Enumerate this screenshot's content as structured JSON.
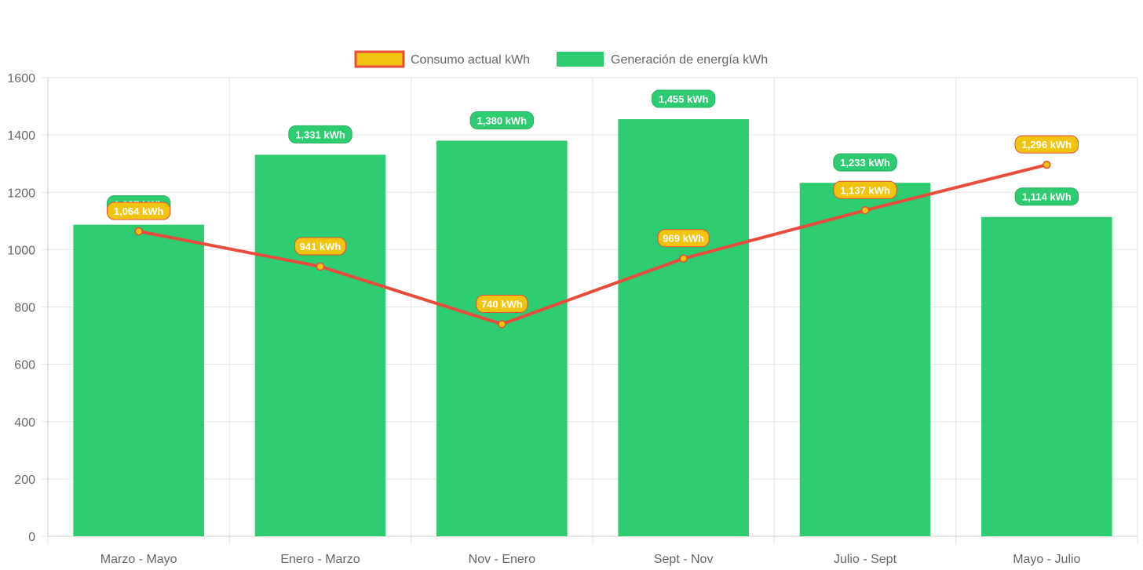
{
  "chart_data": {
    "type": "bar",
    "categories": [
      "Marzo - Mayo",
      "Enero - Marzo",
      "Nov - Enero",
      "Sept - Nov",
      "Julio - Sept",
      "Mayo - Julio"
    ],
    "series": [
      {
        "name": "Consumo actual kWh",
        "type": "line",
        "values": [
          1064,
          941,
          740,
          969,
          1137,
          1296
        ],
        "labels": [
          "1,064 kWh",
          "941 kWh",
          "740 kWh",
          "969 kWh",
          "1,137 kWh",
          "1,296 kWh"
        ],
        "color": "#e74c3c",
        "fill": "#f1c40f"
      },
      {
        "name": "Generación de energía kWh",
        "type": "bar",
        "values": [
          1087,
          1331,
          1380,
          1455,
          1233,
          1114
        ],
        "labels": [
          "1,087 kWh",
          "1,331 kWh",
          "1,380 kWh",
          "1,455 kWh",
          "1,233 kWh",
          "1,114 kWh"
        ],
        "color": "#2ecc71"
      }
    ],
    "ylim": [
      0,
      1600
    ],
    "yticks": [
      "0",
      "200",
      "400",
      "600",
      "800",
      "1000",
      "1200",
      "1400",
      "1600"
    ],
    "grid": true,
    "legend": "top"
  }
}
